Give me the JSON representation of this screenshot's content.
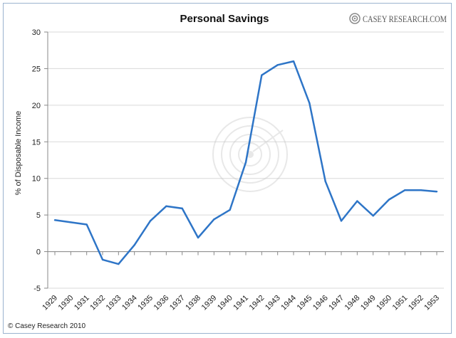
{
  "brand": {
    "name": "CASEY RESEARCH.COM",
    "icon": "casey-research-target-logo-icon"
  },
  "copyright": "© Casey Research 2010",
  "watermark_icon": "target-watermark-icon",
  "chart_data": {
    "type": "line",
    "title": "Personal Savings",
    "xlabel": "",
    "ylabel": "% of Disposable Income",
    "ylim": [
      -5,
      30
    ],
    "yticks": [
      -5,
      0,
      5,
      10,
      15,
      20,
      25,
      30
    ],
    "grid": true,
    "legend": "none",
    "colors": {
      "line": "#2e75c7",
      "grid": "#d9d9d9",
      "frame": "#9bb3cf"
    },
    "categories": [
      "1929",
      "1930",
      "1931",
      "1932",
      "1933",
      "1934",
      "1935",
      "1936",
      "1937",
      "1938",
      "1939",
      "1940",
      "1941",
      "1942",
      "1943",
      "1944",
      "1945",
      "1946",
      "1947",
      "1948",
      "1949",
      "1950",
      "1951",
      "1952",
      "1953"
    ],
    "values": [
      4.3,
      4.0,
      3.7,
      -1.1,
      -1.7,
      0.9,
      4.2,
      6.2,
      5.9,
      1.9,
      4.4,
      5.7,
      12.2,
      24.1,
      25.5,
      26.0,
      20.3,
      9.6,
      4.2,
      6.9,
      4.9,
      7.1,
      8.4,
      8.4,
      8.2
    ]
  }
}
